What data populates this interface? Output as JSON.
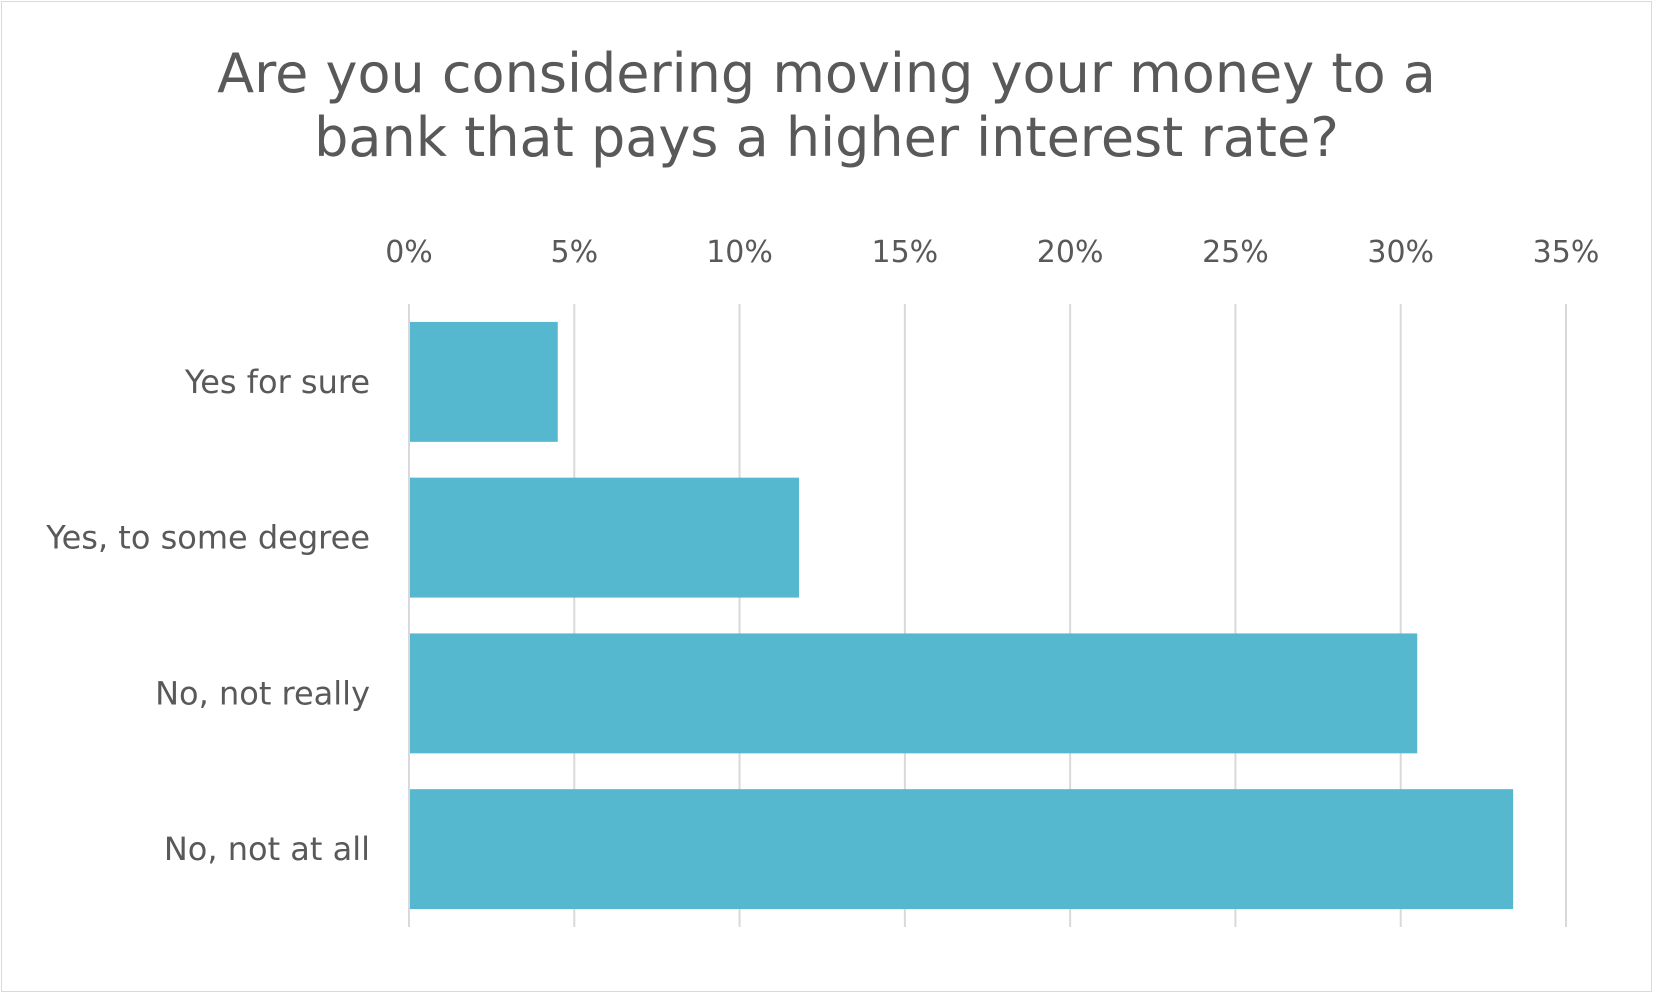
{
  "chart_data": {
    "type": "bar",
    "orientation": "horizontal",
    "title": "Are you considering moving your money to a bank that pays a higher interest rate?",
    "title_lines": [
      "Are you considering moving your money to a",
      "bank that pays a higher interest rate?"
    ],
    "categories": [
      "Yes for sure",
      "Yes, to some degree",
      "No, not really",
      "No, not at all"
    ],
    "values": [
      4.5,
      11.8,
      30.5,
      33.4
    ],
    "xlim": [
      0,
      35
    ],
    "x_ticks": [
      0,
      5,
      10,
      15,
      20,
      25,
      30,
      35
    ],
    "x_tick_labels": [
      "0%",
      "5%",
      "10%",
      "15%",
      "20%",
      "25%",
      "30%",
      "35%"
    ],
    "x_axis_position": "top",
    "grid": true,
    "legend": "none",
    "colors": {
      "bar": "#55b8cf",
      "grid": "#d9d9d9",
      "text": "#595959"
    }
  }
}
